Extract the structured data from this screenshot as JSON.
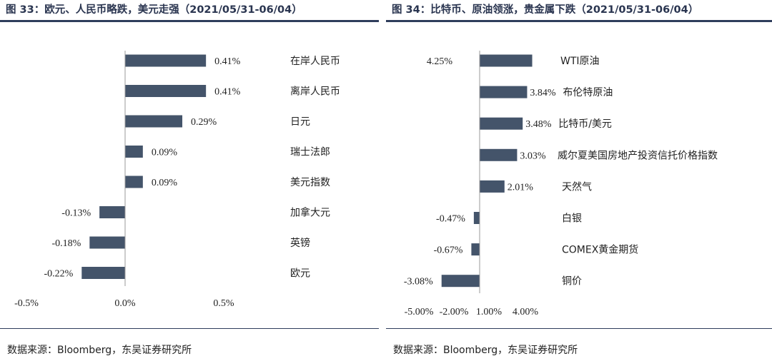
{
  "chart_data": [
    {
      "type": "bar",
      "orientation": "horizontal",
      "title": "图 33：欧元、人民币略跌，美元走强（2021/05/31-06/04）",
      "source": "数据来源：Bloomberg，东吴证券研究所",
      "categories": [
        "在岸人民币",
        "离岸人民币",
        "日元",
        "瑞士法郎",
        "美元指数",
        "加拿大元",
        "英镑",
        "欧元"
      ],
      "values": [
        0.41,
        0.41,
        0.29,
        0.09,
        0.09,
        -0.13,
        -0.18,
        -0.22
      ],
      "value_labels": [
        "0.41%",
        "0.41%",
        "0.29%",
        "0.09%",
        "0.09%",
        "-0.13%",
        "-0.18%",
        "-0.22%"
      ],
      "xlim": [
        -0.5,
        0.5
      ],
      "x_ticks": [
        -0.5,
        0.0,
        0.5
      ],
      "x_tick_labels": [
        "-0.5%",
        "0.0%",
        "0.5%"
      ],
      "bar_color": "#44546a",
      "grid": false
    },
    {
      "type": "bar",
      "orientation": "horizontal",
      "title": "图 34：比特币、原油领涨，贵金属下跌（2021/05/31-06/04）",
      "source": "数据来源：Bloomberg，东吴证券研究所",
      "categories": [
        "WTI原油",
        "布伦特原油",
        "比特币/美元",
        "威尔夏美国房地产投资信托价格指数",
        "天然气",
        "白银",
        "COMEX黄金期货",
        "铜价"
      ],
      "values": [
        4.25,
        3.84,
        3.48,
        3.03,
        2.01,
        -0.47,
        -0.67,
        -3.08
      ],
      "value_labels": [
        "4.25%",
        "3.84%",
        "3.48%",
        "3.03%",
        "2.01%",
        "-0.47%",
        "-0.67%",
        "-3.08%"
      ],
      "x_tick_labels": [
        "-5.00%",
        "-2.00%",
        "1.00%",
        "4.00%"
      ],
      "bar_color": "#44546a",
      "grid": false
    }
  ]
}
